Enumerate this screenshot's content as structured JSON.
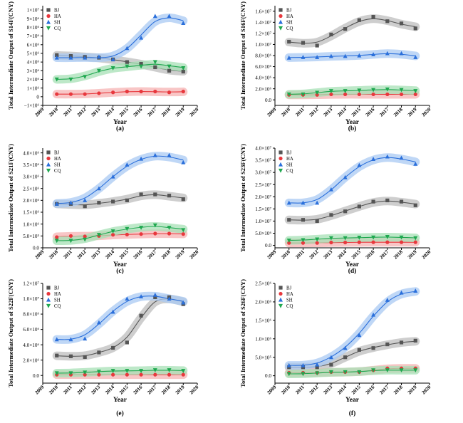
{
  "colors": {
    "BJ": "#555555",
    "HA": "#e8383d",
    "SH": "#2a6fdb",
    "CQ": "#1fa84f",
    "BJ_band": "#bdbdbd",
    "HA_band": "#f6b3b3",
    "SH_band": "#a9c9f3",
    "CQ_band": "#a7e0b6"
  },
  "legend_labels": [
    "BJ",
    "HA",
    "SH",
    "CQ"
  ],
  "legend_markers": [
    "square",
    "circle",
    "triangle-up",
    "triangle-down"
  ],
  "chart_data": [
    {
      "panel": "(a)",
      "type": "line",
      "ylabel": "Total Intermediate Output of S14F(CNY)",
      "xlabel": "Year",
      "xlim": [
        2009,
        2020
      ],
      "ylim": [
        -1000000,
        10500000
      ],
      "xticks": [
        "2009",
        "2010",
        "2011",
        "2012",
        "2013",
        "2014",
        "2015",
        "2016",
        "2017",
        "2018",
        "2019",
        "2020"
      ],
      "yticks": [
        -1000000,
        0,
        1000000,
        2000000,
        3000000,
        4000000,
        5000000,
        6000000,
        7000000,
        8000000,
        9000000,
        10000000
      ],
      "yticklabels": [
        "−1×10⁶",
        "0",
        "1×10⁶",
        "2×10⁶",
        "3×10⁶",
        "4×10⁶",
        "5×10⁶",
        "6×10⁶",
        "7×10⁶",
        "8×10⁶",
        "9×10⁶",
        "1×10⁷"
      ],
      "x": [
        2010,
        2011,
        2012,
        2013,
        2014,
        2015,
        2016,
        2017,
        2018,
        2019
      ],
      "series": [
        {
          "name": "BJ",
          "values": [
            4800000,
            4700000,
            4600000,
            4500000,
            4300000,
            4000000,
            3800000,
            3400000,
            3000000,
            2900000
          ]
        },
        {
          "name": "HA",
          "values": [
            300000,
            300000,
            300000,
            400000,
            500000,
            600000,
            600000,
            600000,
            500000,
            600000
          ]
        },
        {
          "name": "SH",
          "values": [
            4500000,
            4500000,
            4500000,
            4600000,
            4300000,
            5600000,
            6800000,
            9300000,
            9300000,
            8500000
          ]
        },
        {
          "name": "CQ",
          "values": [
            2000000,
            2000000,
            2300000,
            3000000,
            3300000,
            3500000,
            3500000,
            4000000,
            3500000,
            3300000
          ]
        }
      ],
      "legend_position": "top-left"
    },
    {
      "panel": "(b)",
      "type": "line",
      "ylabel": "Total Intermediate Output of S16F(CNY)",
      "xlabel": "Year",
      "xlim": [
        2009,
        2020
      ],
      "ylim": [
        -1000000,
        17000000
      ],
      "xticks": [
        "2009",
        "2010",
        "2011",
        "2012",
        "2013",
        "2014",
        "2015",
        "2016",
        "2017",
        "2018",
        "2019",
        "2020"
      ],
      "yticks": [
        0,
        2000000,
        4000000,
        6000000,
        8000000,
        10000000,
        12000000,
        14000000,
        16000000
      ],
      "yticklabels": [
        "0.0",
        "2.0×10⁶",
        "4.0×10⁶",
        "6.0×10⁶",
        "8.0×10⁶",
        "1.0×10⁷",
        "1.2×10⁷",
        "1.4×10⁷",
        "1.6×10⁷"
      ],
      "x": [
        2010,
        2011,
        2012,
        2013,
        2014,
        2015,
        2016,
        2017,
        2018,
        2019
      ],
      "series": [
        {
          "name": "BJ",
          "values": [
            10500000,
            10300000,
            9800000,
            11800000,
            12800000,
            14400000,
            15000000,
            14200000,
            13800000,
            12900000
          ]
        },
        {
          "name": "HA",
          "values": [
            900000,
            900000,
            900000,
            1000000,
            1000000,
            1000000,
            1000000,
            1000000,
            1000000,
            1000000
          ]
        },
        {
          "name": "SH",
          "values": [
            7600000,
            7700000,
            7700000,
            7900000,
            7900000,
            8000000,
            8200000,
            8400000,
            8400000,
            7700000
          ]
        },
        {
          "name": "CQ",
          "values": [
            1000000,
            1000000,
            1300000,
            1600000,
            1600000,
            1700000,
            1800000,
            1900000,
            1800000,
            1600000
          ]
        }
      ],
      "legend_position": "top-left"
    },
    {
      "panel": "(c)",
      "type": "line",
      "ylabel": "Total Intermediate Output of S21F(CNY)",
      "xlabel": "Year",
      "xlim": [
        2009,
        2020
      ],
      "ylim": [
        0,
        4200000
      ],
      "xticks": [
        "2009",
        "2010",
        "2011",
        "2012",
        "2013",
        "2014",
        "2015",
        "2016",
        "2017",
        "2018",
        "2019",
        "2020"
      ],
      "yticks": [
        0,
        500000,
        1000000,
        1500000,
        2000000,
        2500000,
        3000000,
        3500000,
        4000000
      ],
      "yticklabels": [
        "0.0",
        "5.0×10⁵",
        "1.0×10⁶",
        "1.5×10⁶",
        "2.0×10⁶",
        "2.5×10⁶",
        "3.0×10⁶",
        "3.5×10⁶",
        "4.0×10⁶"
      ],
      "x": [
        2010,
        2011,
        2012,
        2013,
        2014,
        2015,
        2016,
        2017,
        2018,
        2019
      ],
      "series": [
        {
          "name": "BJ",
          "values": [
            1850000,
            1850000,
            1750000,
            1900000,
            1950000,
            2000000,
            2250000,
            2250000,
            2200000,
            2050000
          ]
        },
        {
          "name": "HA",
          "values": [
            450000,
            500000,
            480000,
            500000,
            550000,
            560000,
            580000,
            600000,
            600000,
            580000
          ]
        },
        {
          "name": "SH",
          "values": [
            1850000,
            1900000,
            2000000,
            2500000,
            3000000,
            3500000,
            3750000,
            3900000,
            3900000,
            3600000
          ]
        },
        {
          "name": "CQ",
          "values": [
            300000,
            300000,
            350000,
            550000,
            700000,
            800000,
            850000,
            950000,
            850000,
            750000
          ]
        }
      ],
      "legend_position": "top-left"
    },
    {
      "panel": "(d)",
      "type": "line",
      "ylabel": "Total Intermediate Output of S23F(CNY)",
      "xlabel": "Year",
      "xlim": [
        2009,
        2020
      ],
      "ylim": [
        -1000000,
        40000000
      ],
      "xticks": [
        "2009",
        "2010",
        "2011",
        "2012",
        "2013",
        "2014",
        "2015",
        "2016",
        "2017",
        "2018",
        "2019",
        "2020"
      ],
      "yticks": [
        0,
        5000000,
        10000000,
        15000000,
        20000000,
        25000000,
        30000000,
        35000000,
        40000000
      ],
      "yticklabels": [
        "0.0",
        "5.0×10⁶",
        "1.0×10⁷",
        "1.5×10⁷",
        "2.0×10⁷",
        "2.5×10⁷",
        "3.0×10⁷",
        "3.5×10⁷",
        "4.0×10⁷"
      ],
      "x": [
        2010,
        2011,
        2012,
        2013,
        2014,
        2015,
        2016,
        2017,
        2018,
        2019
      ],
      "series": [
        {
          "name": "BJ",
          "values": [
            10500000,
            10500000,
            10000000,
            12500000,
            14000000,
            16000000,
            18000000,
            18500000,
            18000000,
            16500000
          ]
        },
        {
          "name": "HA",
          "values": [
            1000000,
            1000000,
            1000000,
            1200000,
            1200000,
            1300000,
            1300000,
            1300000,
            1300000,
            1300000
          ]
        },
        {
          "name": "SH",
          "values": [
            17500000,
            17500000,
            17500000,
            23000000,
            28000000,
            33000000,
            35500000,
            36500000,
            36000000,
            33500000
          ]
        },
        {
          "name": "CQ",
          "values": [
            2000000,
            2200000,
            2500000,
            3000000,
            3000000,
            3200000,
            3300000,
            3500000,
            3300000,
            3000000
          ]
        }
      ],
      "legend_position": "top-left"
    },
    {
      "panel": "(e)",
      "type": "line",
      "ylabel": "Total Intermediate Output of S22F(CNY)",
      "xlabel": "Year",
      "xlim": [
        2009,
        2020
      ],
      "ylim": [
        -1000000,
        12000000
      ],
      "xticks": [
        "2009",
        "2010",
        "2011",
        "2012",
        "2013",
        "2014",
        "2015",
        "2016",
        "2017",
        "2018",
        "2019",
        "2020"
      ],
      "yticks": [
        0,
        2000000,
        4000000,
        6000000,
        8000000,
        10000000,
        12000000
      ],
      "yticklabels": [
        "0.0",
        "2.0×10⁶",
        "4.0×10⁶",
        "6.0×10⁶",
        "8.0×10⁶",
        "1.0×10⁷",
        "1.2×10⁷"
      ],
      "x": [
        2010,
        2011,
        2012,
        2013,
        2014,
        2015,
        2016,
        2017,
        2018,
        2019
      ],
      "series": [
        {
          "name": "BJ",
          "values": [
            2600000,
            2500000,
            2400000,
            3000000,
            3600000,
            4300000,
            7800000,
            10200000,
            10200000,
            9300000
          ]
        },
        {
          "name": "HA",
          "values": [
            100000,
            100000,
            100000,
            100000,
            100000,
            100000,
            100000,
            100000,
            100000,
            100000
          ]
        },
        {
          "name": "SH",
          "values": [
            4700000,
            4700000,
            4800000,
            6900000,
            8300000,
            10000000,
            10300000,
            10500000,
            10000000,
            9500000
          ]
        },
        {
          "name": "CQ",
          "values": [
            300000,
            300000,
            400000,
            500000,
            600000,
            600000,
            600000,
            700000,
            700000,
            600000
          ]
        }
      ],
      "legend_position": "top-left"
    },
    {
      "panel": "(f)",
      "type": "line",
      "ylabel": "Total Intermediate Output of S26F(CNY)",
      "xlabel": "Year",
      "xlim": [
        2009,
        2020
      ],
      "ylim": [
        -200000,
        2500000
      ],
      "xticks": [
        "2009",
        "2010",
        "2011",
        "2012",
        "2013",
        "2014",
        "2015",
        "2016",
        "2017",
        "2018",
        "2019",
        "2020"
      ],
      "yticks": [
        0,
        500000,
        1000000,
        1500000,
        2000000,
        2500000
      ],
      "yticklabels": [
        "0.0",
        "5.0×10⁵",
        "1.0×10⁶",
        "1.5×10⁶",
        "2.0×10⁶",
        "2.5×10⁶"
      ],
      "x": [
        2010,
        2011,
        2012,
        2013,
        2014,
        2015,
        2016,
        2017,
        2018,
        2019
      ],
      "series": [
        {
          "name": "BJ",
          "values": [
            230000,
            230000,
            230000,
            300000,
            500000,
            700000,
            750000,
            850000,
            900000,
            950000
          ]
        },
        {
          "name": "HA",
          "values": [
            80000,
            80000,
            80000,
            100000,
            100000,
            100000,
            150000,
            200000,
            200000,
            200000
          ]
        },
        {
          "name": "SH",
          "values": [
            280000,
            280000,
            300000,
            500000,
            750000,
            1100000,
            1650000,
            2050000,
            2250000,
            2300000
          ]
        },
        {
          "name": "CQ",
          "values": [
            50000,
            50000,
            70000,
            100000,
            100000,
            100000,
            150000,
            150000,
            150000,
            150000
          ]
        }
      ],
      "legend_position": "top-left"
    }
  ]
}
